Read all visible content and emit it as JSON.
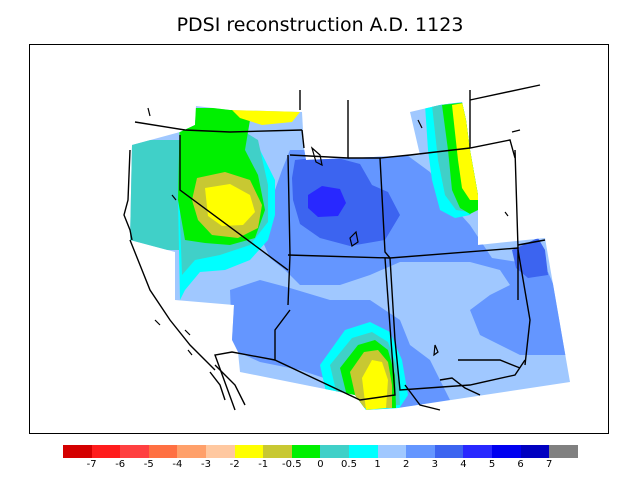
{
  "title": "PDSI reconstruction A.D. 1123",
  "legend": {
    "colors": [
      "#d40000",
      "#ff1c1c",
      "#ff4040",
      "#ff7042",
      "#ffa06a",
      "#ffc8a0",
      "#ffff00",
      "#c8c832",
      "#00f000",
      "#40d0c8",
      "#00ffff",
      "#a0c8ff",
      "#6496ff",
      "#3c64f0",
      "#2828ff",
      "#0000f0",
      "#0000c0",
      "#808080"
    ],
    "labels": [
      "-7",
      "-6",
      "-5",
      "-4",
      "-3",
      "-2",
      "-1",
      "-0.5",
      "0",
      "0.5",
      "1",
      "2",
      "3",
      "4",
      "5",
      "6",
      "7"
    ]
  },
  "map_colors": {
    "light_blue": "#a0c8ff",
    "mid_blue": "#6496ff",
    "dark_blue": "#3c64f0",
    "deep_blue": "#2828ff",
    "cyan": "#00ffff",
    "teal": "#40d0c8",
    "green": "#00f000",
    "olive": "#c8c832",
    "yellow": "#ffff00"
  }
}
